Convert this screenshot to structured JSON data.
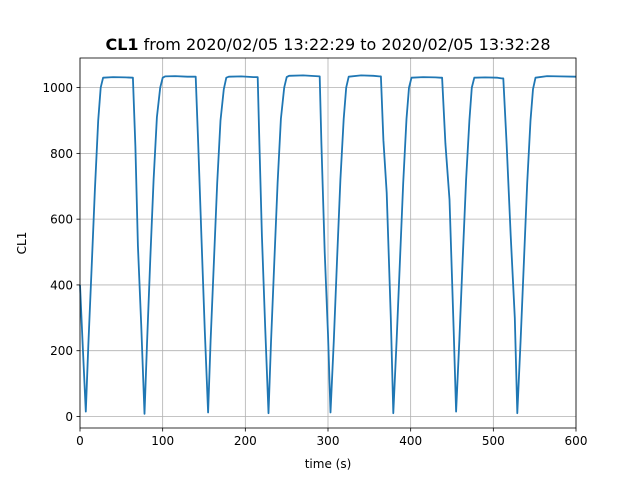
{
  "chart_data": {
    "type": "line",
    "title_bold": "CL1",
    "title_rest": " from 2020/02/05 13:22:29 to 2020/02/05 13:32:28",
    "xlabel": "time (s)",
    "ylabel": "CL1",
    "xlim": [
      0,
      600
    ],
    "ylim": [
      -35,
      1090
    ],
    "xticks": [
      0,
      100,
      200,
      300,
      400,
      500,
      600
    ],
    "yticks": [
      0,
      200,
      400,
      600,
      800,
      1000
    ],
    "grid": true,
    "colors": {
      "line": "#1f77b4",
      "grid": "#b0b0b0",
      "axes": "#000000"
    },
    "series": [
      {
        "x": [
          0,
          3,
          7,
          10,
          14,
          18,
          22,
          25,
          28,
          40,
          55,
          64,
          67,
          70,
          74,
          78,
          81,
          85,
          89,
          93,
          97,
          100,
          103,
          115,
          130,
          140,
          143,
          147,
          151,
          155,
          158,
          162,
          166,
          170,
          174,
          177,
          180,
          195,
          210,
          215,
          217,
          220,
          224,
          228,
          231,
          235,
          239,
          243,
          247,
          250,
          253,
          270,
          285,
          290,
          292,
          296,
          300,
          303,
          307,
          311,
          315,
          319,
          322,
          325,
          340,
          355,
          362,
          364,
          367,
          371,
          376,
          379,
          383,
          387,
          391,
          395,
          398,
          401,
          415,
          430,
          436,
          438,
          442,
          447,
          452,
          455,
          459,
          463,
          467,
          471,
          474,
          477,
          490,
          505,
          510,
          512,
          516,
          521,
          526,
          529,
          533,
          537,
          541,
          545,
          548,
          551,
          565,
          580,
          600
        ],
        "y": [
          400,
          230,
          15,
          215,
          450,
          690,
          900,
          1000,
          1030,
          1032,
          1031,
          1030,
          820,
          520,
          280,
          8,
          220,
          480,
          720,
          910,
          1000,
          1030,
          1034,
          1035,
          1033,
          1033,
          830,
          540,
          260,
          12,
          230,
          470,
          710,
          900,
          995,
          1030,
          1033,
          1034,
          1032,
          1032,
          830,
          550,
          270,
          10,
          225,
          470,
          710,
          905,
          1000,
          1032,
          1036,
          1037,
          1035,
          1034,
          830,
          500,
          250,
          12,
          230,
          480,
          720,
          905,
          1000,
          1033,
          1037,
          1036,
          1034,
          1034,
          840,
          680,
          300,
          10,
          230,
          470,
          710,
          905,
          1000,
          1030,
          1032,
          1031,
          1030,
          1030,
          830,
          660,
          260,
          15,
          235,
          480,
          720,
          900,
          1000,
          1030,
          1031,
          1030,
          1028,
          1028,
          830,
          550,
          300,
          10,
          230,
          470,
          710,
          900,
          995,
          1030,
          1035,
          1034,
          1033
        ]
      }
    ]
  }
}
